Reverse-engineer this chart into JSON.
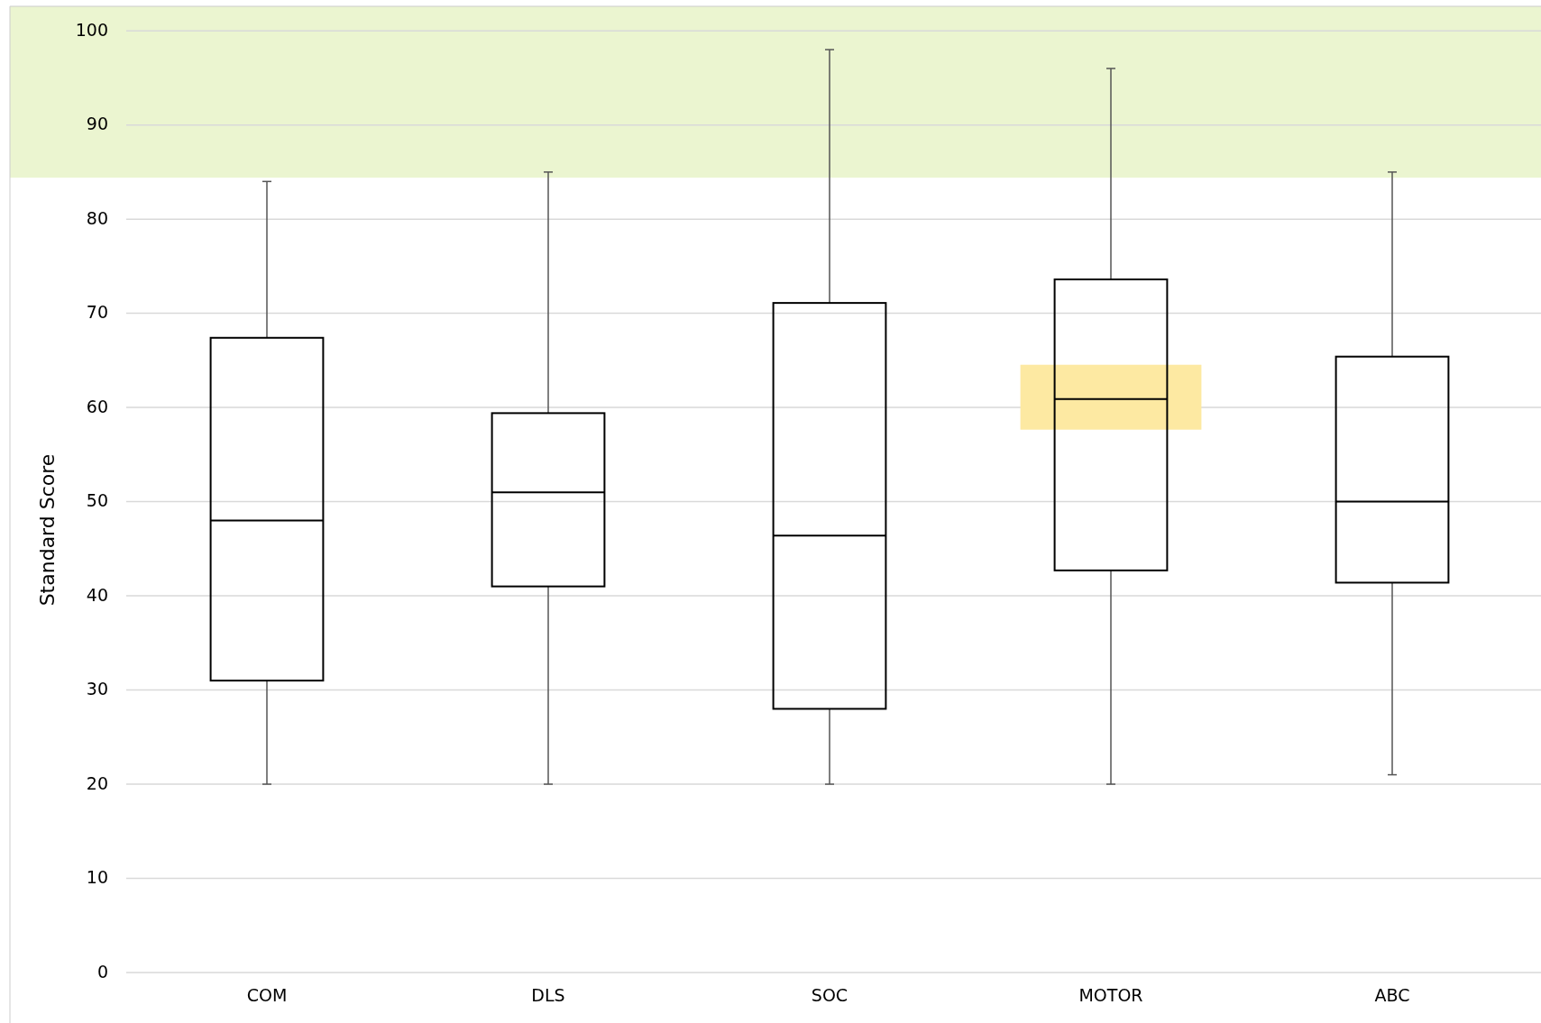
{
  "chart_data": {
    "type": "box",
    "ylabel": "Standard Score",
    "categories": [
      "COM",
      "DLS",
      "SOC",
      "MOTOR",
      "ABC"
    ],
    "boxes": [
      {
        "low": 20,
        "q1": 31,
        "median": 48,
        "q3": 67.4,
        "high": 84
      },
      {
        "low": 20,
        "q1": 41,
        "median": 51,
        "q3": 59.4,
        "high": 85
      },
      {
        "low": 20,
        "q1": 28,
        "median": 46.4,
        "q3": 71.1,
        "high": 98
      },
      {
        "low": 20,
        "q1": 42.7,
        "median": 60.9,
        "q3": 73.6,
        "high": 96
      },
      {
        "low": 21,
        "q1": 41.4,
        "median": 50,
        "q3": 65.4,
        "high": 85
      }
    ],
    "ylim": [
      0,
      102.6
    ],
    "yticks": [
      0,
      10,
      20,
      30,
      40,
      50,
      60,
      70,
      80,
      90,
      100
    ],
    "grid": "y",
    "bands": [
      {
        "axis": "y",
        "from": 84.4,
        "to": 102.6,
        "color": "#ebf5d0"
      }
    ]
  }
}
